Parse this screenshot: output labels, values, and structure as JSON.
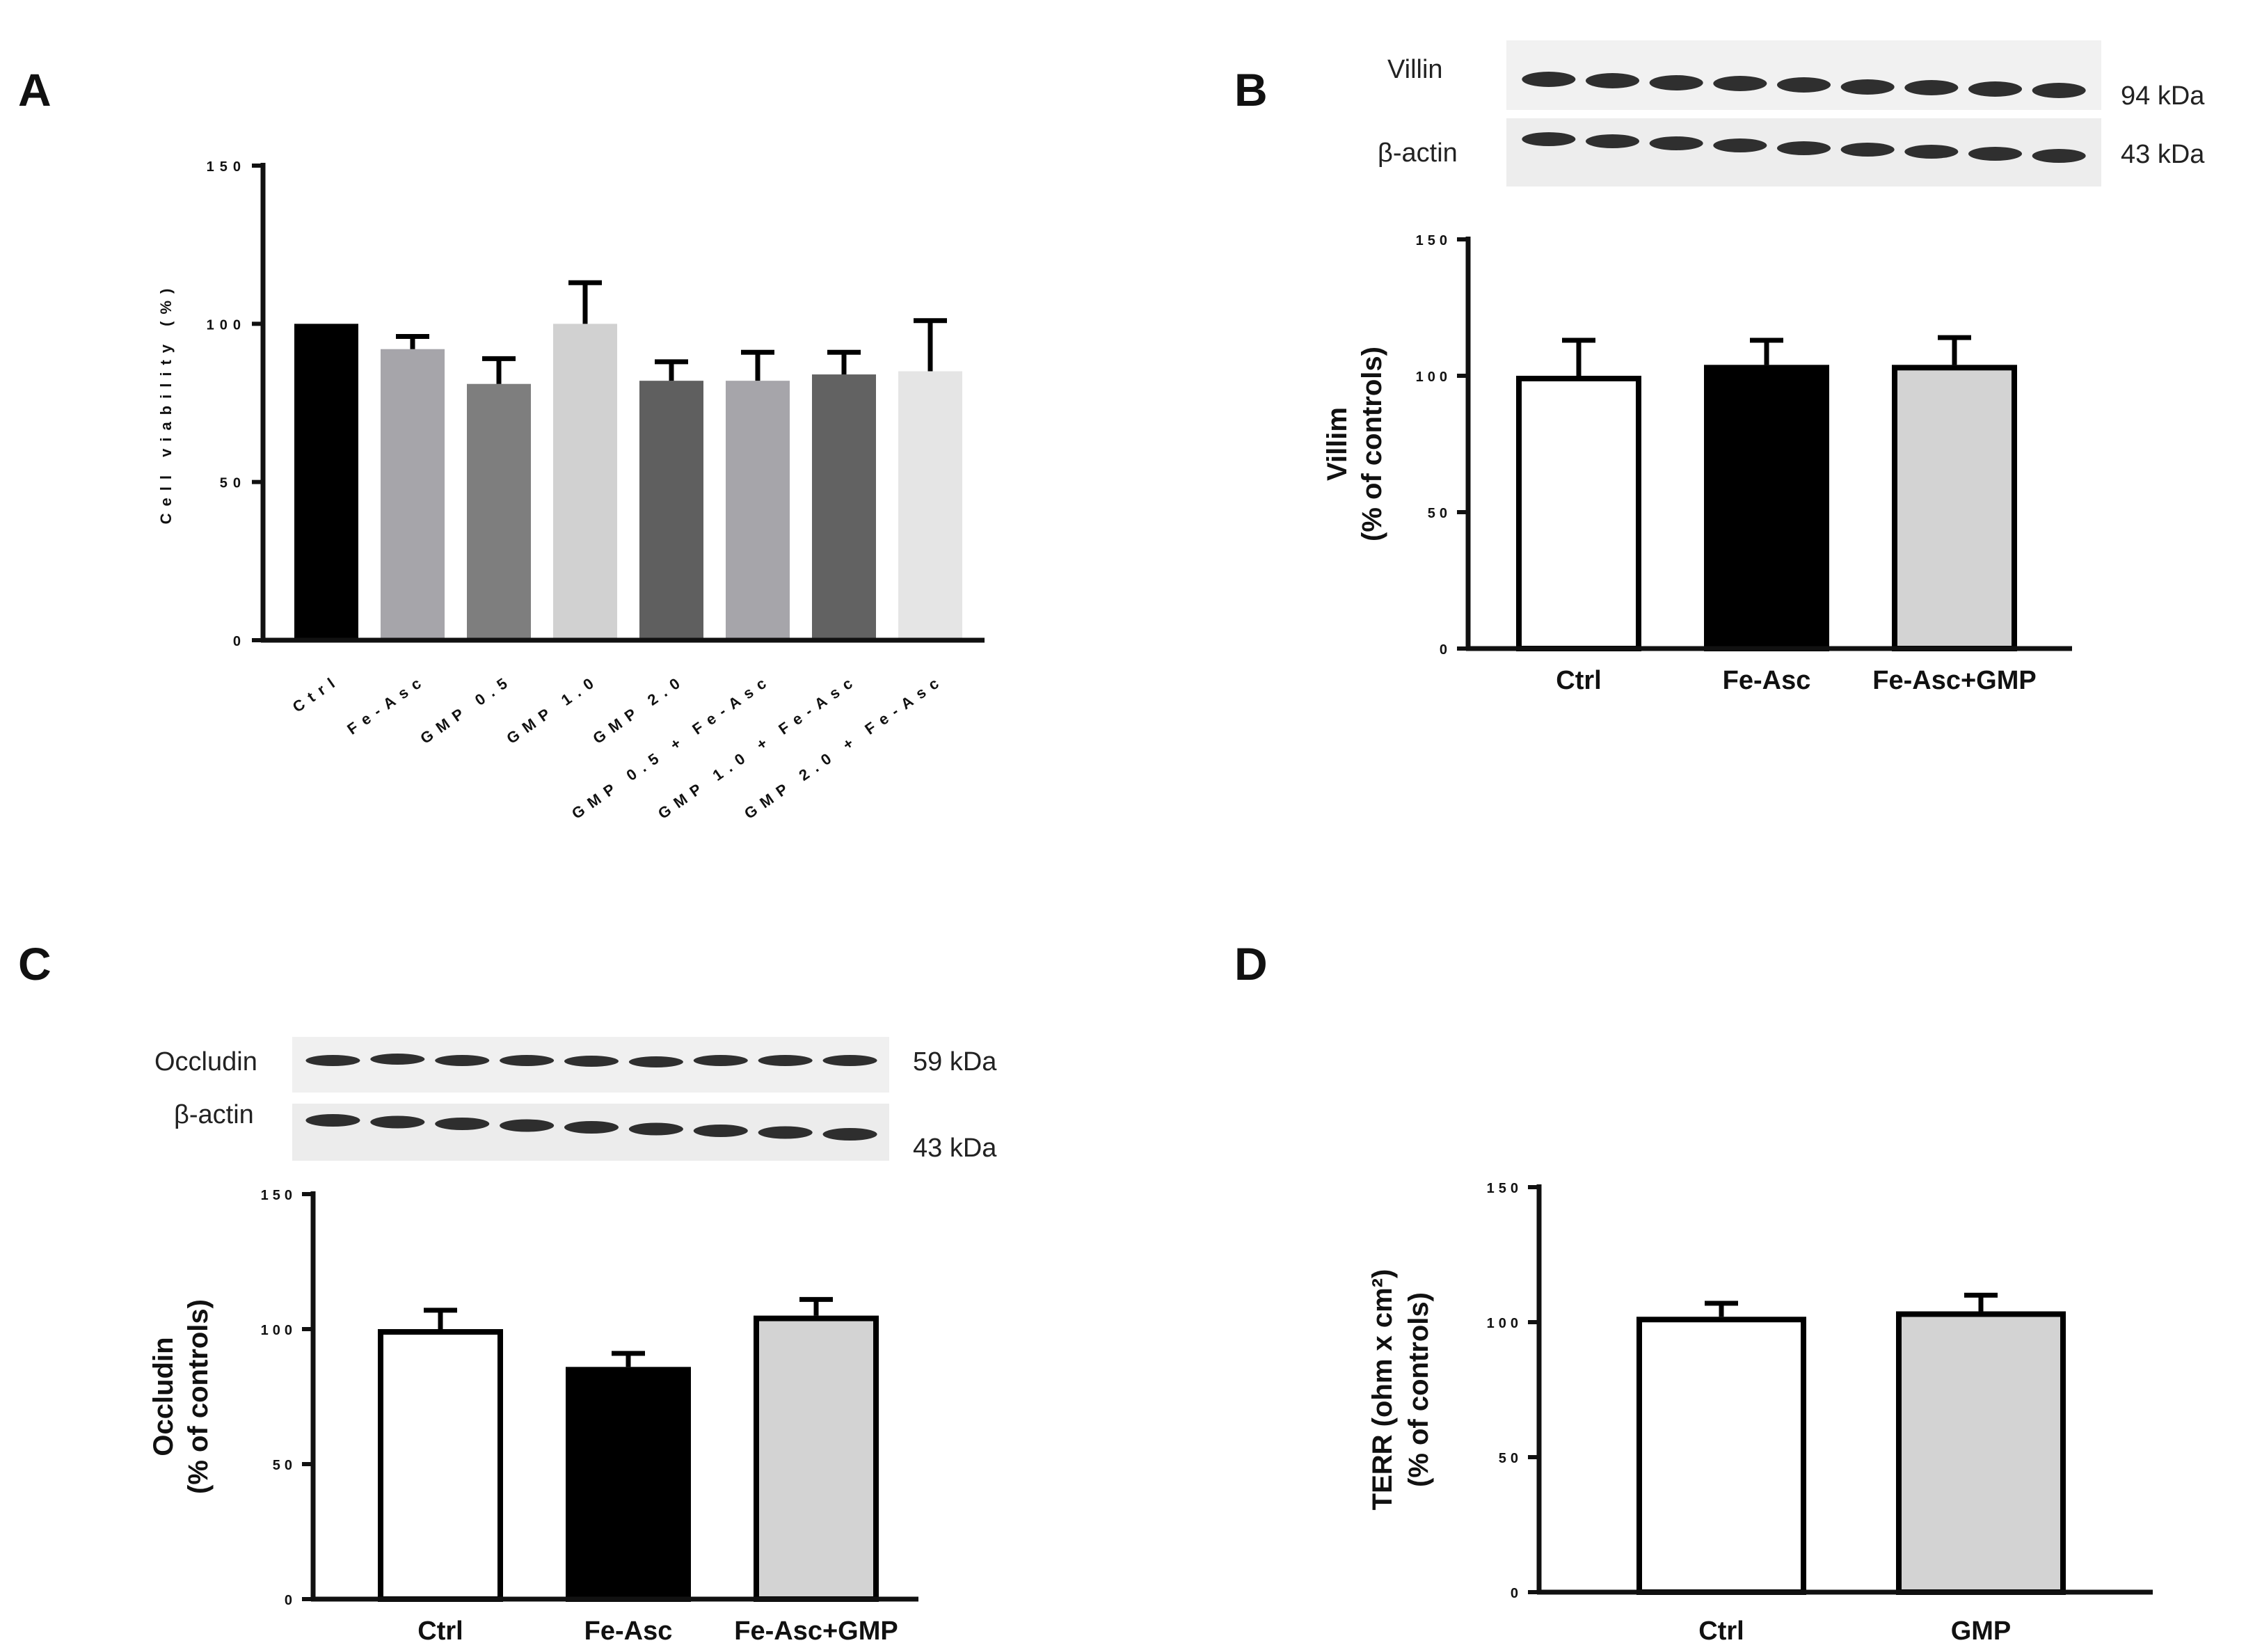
{
  "panels": {
    "A": "A",
    "B": "B",
    "C": "C",
    "D": "D"
  },
  "blots": {
    "B": {
      "rows": [
        {
          "label": "Villin",
          "size": "94 kDa"
        },
        {
          "label": "β-actin",
          "size": "43 kDa"
        }
      ]
    },
    "C": {
      "rows": [
        {
          "label": "Occludin",
          "size": "59 kDa"
        },
        {
          "label": "β-actin",
          "size": "43 kDa"
        }
      ]
    }
  },
  "colors": {
    "black": "#000000",
    "white": "#ffffff",
    "light_gray": "#d3d3d3"
  },
  "chart_data": [
    {
      "id": "A",
      "type": "bar",
      "title": "",
      "xlabel": "",
      "ylabel": "Cell viability (%)",
      "ylim": [
        0,
        150
      ],
      "yticks": [
        "0",
        "50",
        "100",
        "150"
      ],
      "categories": [
        "Ctrl",
        "Fe-Asc",
        "GMP 0.5",
        "GMP 1.0",
        "GMP 2.0",
        "GMP 0.5 + Fe-Asc",
        "GMP 1.0 + Fe-Asc",
        "GMP 2.0 + Fe-Asc"
      ],
      "values": [
        100,
        92,
        81,
        100,
        82,
        82,
        84,
        85
      ],
      "errors": [
        0,
        4,
        8,
        13,
        6,
        9,
        7,
        16
      ],
      "bar_colors": [
        "#000000",
        "#a6a5aa",
        "#7e7e7e",
        "#d1d1d1",
        "#5f5f5f",
        "#a6a5aa",
        "#626262",
        "#e5e5e5"
      ],
      "legend": "none"
    },
    {
      "id": "B",
      "type": "bar",
      "title": "",
      "xlabel": "",
      "ylabel": [
        "Villim",
        "(% of controls)"
      ],
      "ylim": [
        0,
        150
      ],
      "yticks": [
        "0",
        "50",
        "100",
        "150"
      ],
      "categories": [
        "Ctrl",
        "Fe-Asc",
        "Fe-Asc+GMP"
      ],
      "values": [
        100,
        104,
        104
      ],
      "errors": [
        13,
        9,
        10
      ],
      "bar_colors": [
        "#ffffff",
        "#000000",
        "#d3d3d3"
      ],
      "legend": "none"
    },
    {
      "id": "C",
      "type": "bar",
      "title": "",
      "xlabel": "",
      "ylabel": [
        "Occludin",
        "(% of controls)"
      ],
      "ylim": [
        0,
        150
      ],
      "yticks": [
        "0",
        "50",
        "100",
        "150"
      ],
      "categories": [
        "Ctrl",
        "Fe-Asc",
        "Fe-Asc+GMP"
      ],
      "values": [
        100,
        86,
        105
      ],
      "errors": [
        7,
        5,
        6
      ],
      "bar_colors": [
        "#ffffff",
        "#000000",
        "#d3d3d3"
      ],
      "legend": "none"
    },
    {
      "id": "D",
      "type": "bar",
      "title": "",
      "xlabel": "",
      "ylabel": [
        "TERR (ohm x cm²)",
        "(% of controls)"
      ],
      "ylim": [
        0,
        150
      ],
      "yticks": [
        "0",
        "50",
        "100",
        "150"
      ],
      "categories": [
        "Ctrl",
        "GMP"
      ],
      "values": [
        102,
        104
      ],
      "errors": [
        5,
        6
      ],
      "bar_colors": [
        "#ffffff",
        "#d3d3d3"
      ],
      "legend": "none"
    }
  ]
}
